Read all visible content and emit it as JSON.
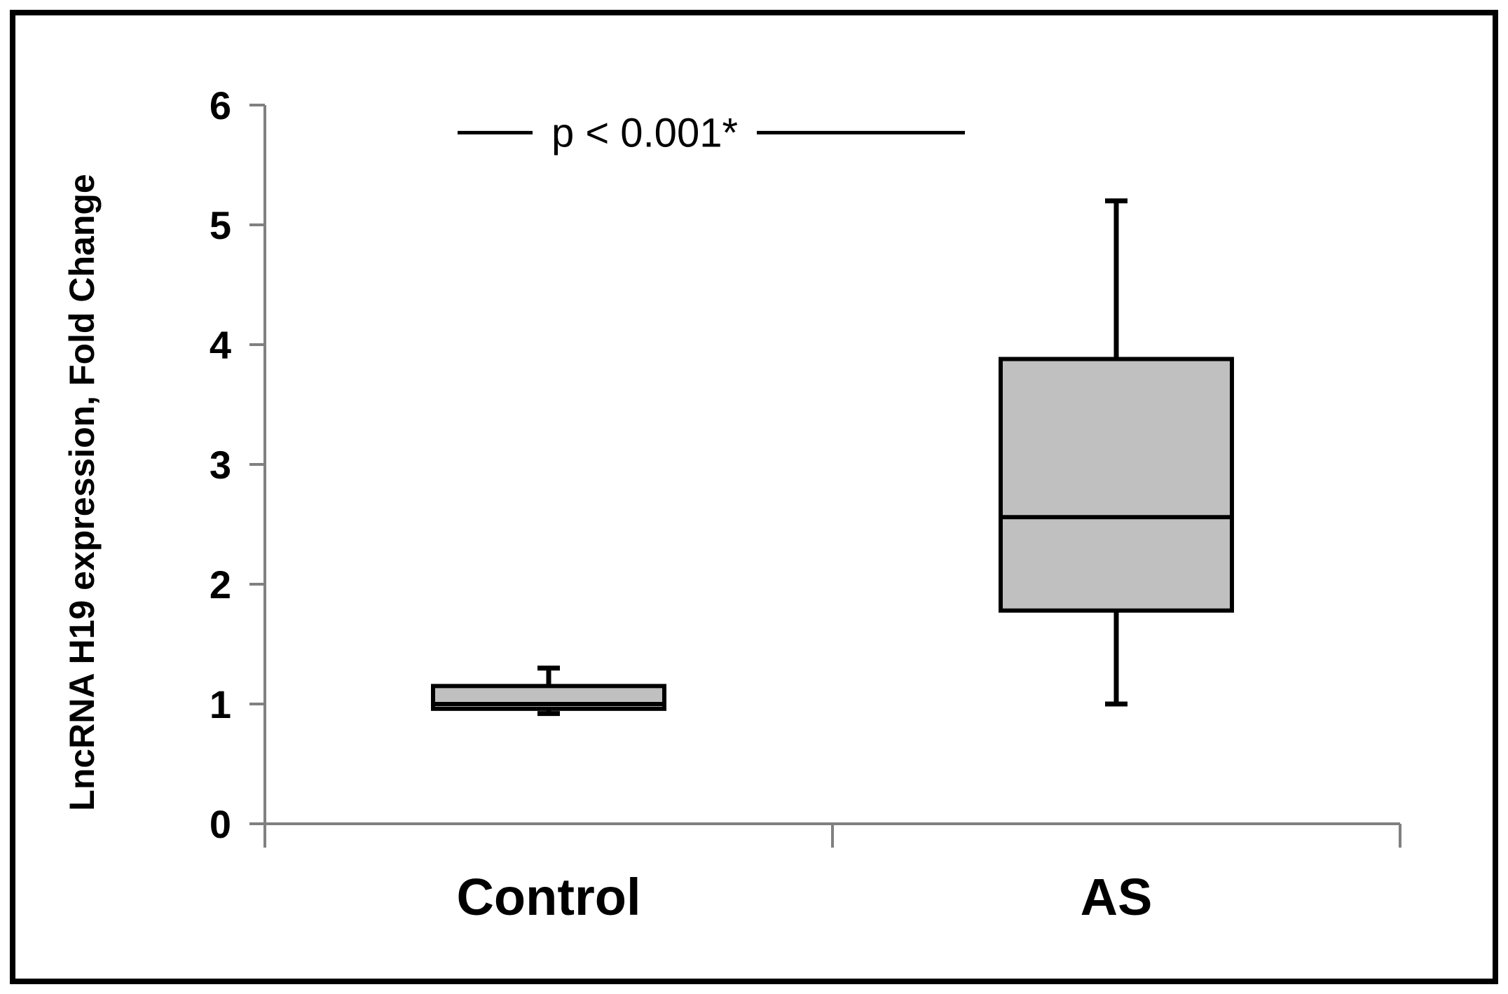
{
  "chart_data": {
    "type": "boxplot",
    "ylabel": "LncRNA H19  expression, Fold Change",
    "ylim": [
      0,
      6
    ],
    "yticks": [
      "0",
      "1",
      "2",
      "3",
      "4",
      "5",
      "6"
    ],
    "categories": [
      "Control",
      "AS"
    ],
    "boxes": [
      {
        "category": "Control",
        "min": 0.92,
        "q1": 0.96,
        "median": 1.0,
        "q3": 1.15,
        "max": 1.3
      },
      {
        "category": "AS",
        "min": 1.0,
        "q1": 1.78,
        "median": 2.56,
        "q3": 3.88,
        "max": 5.2
      }
    ],
    "box_color": "#c0c0c0",
    "annotation": {
      "text": "p < 0.001*",
      "y": 5.77
    },
    "grid": false,
    "legend": "none"
  }
}
